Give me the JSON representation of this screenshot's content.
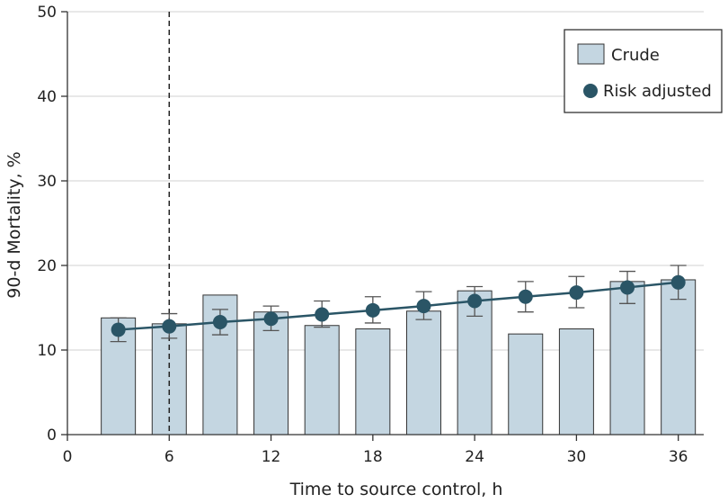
{
  "chart_data": {
    "type": "bar",
    "xlabel": "Time to source control, h",
    "ylabel": "90-d Mortality, %",
    "xlim": [
      0,
      37.5
    ],
    "ylim": [
      0,
      50
    ],
    "x_ticks": [
      0,
      6,
      12,
      18,
      24,
      30,
      36
    ],
    "y_ticks": [
      0,
      10,
      20,
      30,
      40,
      50
    ],
    "reference_line": {
      "x": 6,
      "style": "dashed"
    },
    "legend_position": "top-right",
    "colors": {
      "crude_fill": "#c4d6e1",
      "crude_stroke": "#333333",
      "risk_adjusted": "#2a5566",
      "error_bar": "#555555"
    },
    "series": [
      {
        "name": "Crude",
        "type": "bar",
        "x": [
          3,
          6,
          9,
          12,
          15,
          18,
          21,
          24,
          27,
          30,
          33,
          36
        ],
        "values": [
          13.8,
          13.1,
          16.5,
          14.5,
          12.9,
          12.5,
          14.6,
          17.0,
          11.9,
          12.5,
          18.1,
          18.3
        ]
      },
      {
        "name": "Risk adjusted",
        "type": "line",
        "x": [
          3,
          6,
          9,
          12,
          15,
          18,
          21,
          24,
          27,
          30,
          33,
          36
        ],
        "values": [
          12.4,
          12.8,
          13.3,
          13.7,
          14.2,
          14.7,
          15.2,
          15.8,
          16.3,
          16.8,
          17.4,
          18.0
        ],
        "ci_low": [
          11.0,
          11.4,
          11.8,
          12.3,
          12.7,
          13.2,
          13.6,
          14.0,
          14.5,
          15.0,
          15.5,
          16.0
        ],
        "ci_high": [
          13.8,
          14.3,
          14.8,
          15.2,
          15.8,
          16.3,
          16.9,
          17.5,
          18.1,
          18.7,
          19.3,
          20.0
        ]
      }
    ]
  }
}
